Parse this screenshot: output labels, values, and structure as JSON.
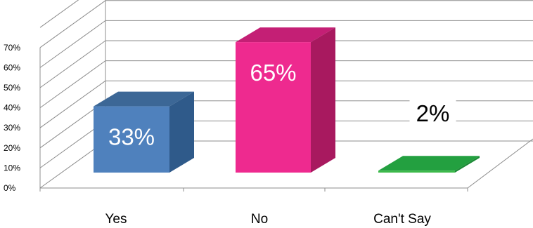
{
  "chart_data": {
    "type": "bar",
    "style": "3d-column",
    "categories": [
      "Yes",
      "No",
      "Can't Say"
    ],
    "values": [
      33,
      65,
      2
    ],
    "data_labels": [
      "33%",
      "65%",
      "2%"
    ],
    "ylim": [
      0,
      70
    ],
    "yticks": [
      0,
      10,
      20,
      30,
      40,
      50,
      60,
      70
    ],
    "ytick_labels": [
      "0%",
      "10%",
      "20%",
      "30%",
      "40%",
      "50%",
      "60%",
      "70%"
    ],
    "grid": true,
    "legend": "none",
    "colors": {
      "Yes": {
        "front": "#4f81bd",
        "top": "#3c6796",
        "side": "#2f5a8a"
      },
      "No": {
        "front": "#ee2a8f",
        "top": "#c41f75",
        "side": "#a8195f"
      },
      "Can't Say": {
        "front": "#3cba4a",
        "top": "#23a040",
        "side": "#1c8a36"
      },
      "grid": "#8c8c8c",
      "label_on_bar": "#ffffff",
      "label_default": "#000000"
    }
  }
}
